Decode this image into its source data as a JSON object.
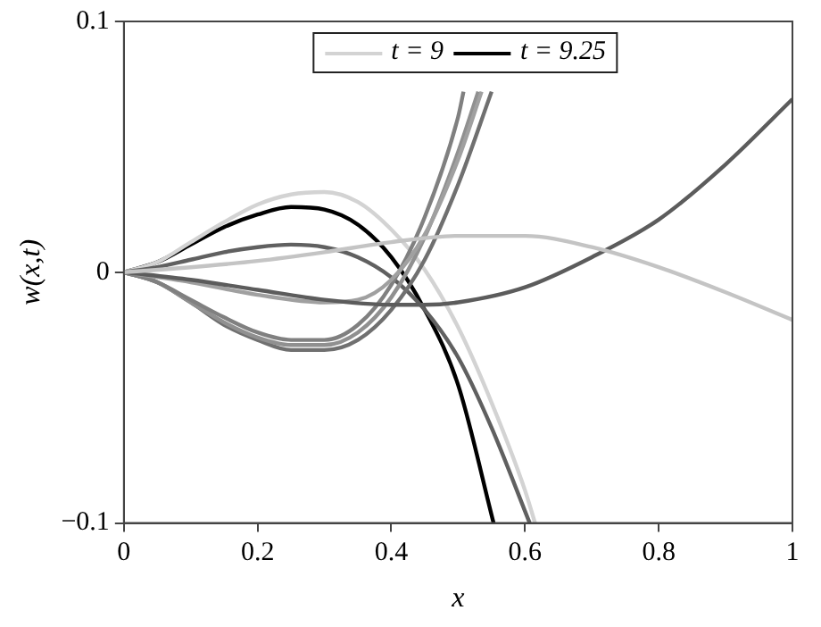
{
  "chart_data": {
    "type": "line",
    "xlabel": "x",
    "ylabel": "w(x,t)",
    "xlim": [
      0,
      1
    ],
    "ylim": [
      -0.1,
      0.1
    ],
    "xticks": [
      0,
      0.2,
      0.4,
      0.6,
      0.8,
      1
    ],
    "yticks": [
      {
        "value": -0.1,
        "label": "−0.1"
      },
      0,
      0.1
    ],
    "grid": false,
    "legend": "top",
    "marker": "none",
    "line_style": "solid",
    "series": [
      {
        "color": "#c4c4c4",
        "x": [
          0,
          0.1,
          0.2,
          0.3,
          0.4,
          0.5,
          0.6,
          0.7,
          0.8,
          0.9,
          1
        ],
        "values": [
          0,
          0.002,
          0.0045,
          0.008,
          0.012,
          0.0145,
          0.0145,
          0.01,
          0.002,
          -0.008,
          -0.019
        ]
      },
      {
        "color": "#5c5c5c",
        "x": [
          0,
          0.1,
          0.2,
          0.3,
          0.4,
          0.45,
          0.5,
          0.6,
          0.7,
          0.8,
          0.9,
          1
        ],
        "values": [
          0,
          -0.003,
          -0.007,
          -0.011,
          -0.013,
          -0.013,
          -0.012,
          -0.006,
          0.006,
          0.021,
          0.043,
          0.069
        ]
      },
      {
        "color": "#a0a0a0",
        "x": [
          0,
          0.1,
          0.2,
          0.3,
          0.35,
          0.4,
          0.45,
          0.5,
          0.535
        ],
        "values": [
          0,
          -0.004,
          -0.009,
          -0.012,
          -0.011,
          -0.003,
          0.015,
          0.045,
          0.072
        ]
      },
      {
        "color": "#808080",
        "x": [
          0,
          0.05,
          0.1,
          0.15,
          0.2,
          0.25,
          0.3,
          0.35,
          0.4,
          0.45,
          0.5,
          0.508
        ],
        "values": [
          0,
          -0.004,
          -0.011,
          -0.018,
          -0.024,
          -0.027,
          -0.027,
          -0.021,
          -0.005,
          0.022,
          0.062,
          0.072
        ]
      },
      {
        "color": "#909090",
        "x": [
          0,
          0.05,
          0.1,
          0.15,
          0.2,
          0.25,
          0.3,
          0.35,
          0.4,
          0.45,
          0.5,
          0.53
        ],
        "values": [
          0,
          -0.004,
          -0.012,
          -0.02,
          -0.026,
          -0.029,
          -0.029,
          -0.024,
          -0.01,
          0.014,
          0.048,
          0.072
        ]
      },
      {
        "color": "#707070",
        "x": [
          0,
          0.05,
          0.1,
          0.15,
          0.2,
          0.25,
          0.3,
          0.35,
          0.4,
          0.45,
          0.5,
          0.55
        ],
        "values": [
          0,
          -0.004,
          -0.012,
          -0.021,
          -0.027,
          -0.031,
          -0.031,
          -0.027,
          -0.015,
          0.005,
          0.035,
          0.072
        ]
      },
      {
        "color": "#606060",
        "x": [
          0,
          0.05,
          0.1,
          0.15,
          0.2,
          0.25,
          0.3,
          0.35,
          0.4,
          0.45,
          0.5,
          0.55,
          0.607
        ],
        "values": [
          0,
          0.002,
          0.005,
          0.008,
          0.01,
          0.011,
          0.01,
          0.006,
          -0.002,
          -0.015,
          -0.034,
          -0.062,
          -0.1
        ]
      },
      {
        "name": "t = 9",
        "color": "#d3d3d3",
        "x": [
          0,
          0.05,
          0.1,
          0.15,
          0.2,
          0.25,
          0.3,
          0.35,
          0.4,
          0.45,
          0.5,
          0.55,
          0.6,
          0.615
        ],
        "values": [
          0,
          0.004,
          0.012,
          0.02,
          0.027,
          0.031,
          0.032,
          0.028,
          0.017,
          0.001,
          -0.022,
          -0.052,
          -0.087,
          -0.1
        ]
      },
      {
        "name": "t = 9.25",
        "color": "#000000",
        "x": [
          0,
          0.05,
          0.1,
          0.15,
          0.2,
          0.25,
          0.3,
          0.35,
          0.4,
          0.45,
          0.5,
          0.553
        ],
        "values": [
          0,
          0.004,
          0.011,
          0.018,
          0.023,
          0.026,
          0.025,
          0.019,
          0.006,
          -0.015,
          -0.045,
          -0.1
        ]
      }
    ]
  }
}
